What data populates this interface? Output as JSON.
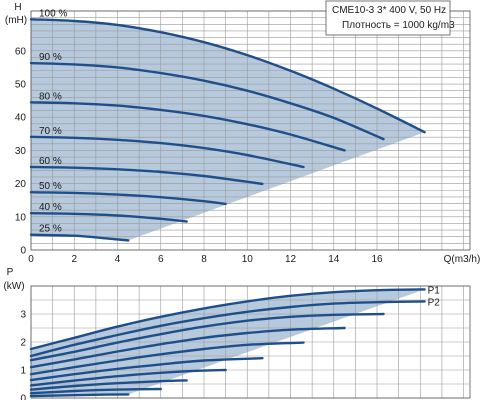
{
  "info": {
    "line1": "CME10-3   3* 400 V, 50 Hz",
    "line2": "Плотность = 1000 kg/m3"
  },
  "chart_data": [
    {
      "type": "line",
      "panel": "head",
      "ylabel_top": "H",
      "ylabel_unit": "(mH)",
      "xlabel": "Q(m3/h)",
      "xlim": [
        0,
        20.3
      ],
      "ylim": [
        0,
        72
      ],
      "x_ticks": [
        0,
        2,
        4,
        6,
        8,
        10,
        12,
        14,
        16
      ],
      "y_ticks": [
        0,
        10,
        20,
        30,
        40,
        50,
        60
      ],
      "grid": true,
      "series": [
        {
          "name": "100 %",
          "points": [
            [
              0,
              69.5
            ],
            [
              2,
              69.0
            ],
            [
              4,
              67.8
            ],
            [
              6,
              65.6
            ],
            [
              8,
              62.6
            ],
            [
              10,
              58.7
            ],
            [
              12,
              54.0
            ],
            [
              14,
              48.6
            ],
            [
              16,
              42.6
            ],
            [
              18.2,
              35.5
            ]
          ]
        },
        {
          "name": "90 %",
          "points": [
            [
              0,
              56.3
            ],
            [
              2,
              55.9
            ],
            [
              4,
              55.0
            ],
            [
              6,
              53.3
            ],
            [
              8,
              51.0
            ],
            [
              10,
              48.0
            ],
            [
              12,
              44.2
            ],
            [
              14,
              39.8
            ],
            [
              16.3,
              33.4
            ]
          ]
        },
        {
          "name": "80 %",
          "points": [
            [
              0,
              44.5
            ],
            [
              2,
              44.2
            ],
            [
              4,
              43.5
            ],
            [
              6,
              42.2
            ],
            [
              8,
              40.4
            ],
            [
              10,
              37.9
            ],
            [
              12,
              34.8
            ],
            [
              14.5,
              30.0
            ]
          ]
        },
        {
          "name": "70 %",
          "points": [
            [
              0,
              34.1
            ],
            [
              2,
              33.8
            ],
            [
              4,
              33.2
            ],
            [
              6,
              32.2
            ],
            [
              8,
              30.7
            ],
            [
              10,
              28.6
            ],
            [
              12.6,
              25.0
            ]
          ]
        },
        {
          "name": "60 %",
          "points": [
            [
              0,
              25.0
            ],
            [
              2,
              24.8
            ],
            [
              4,
              24.3
            ],
            [
              6,
              23.5
            ],
            [
              8,
              22.3
            ],
            [
              10.7,
              19.9
            ]
          ]
        },
        {
          "name": "50 %",
          "points": [
            [
              0,
              17.4
            ],
            [
              2,
              17.2
            ],
            [
              4,
              16.7
            ],
            [
              6,
              15.9
            ],
            [
              8,
              14.7
            ],
            [
              9.0,
              13.9
            ]
          ]
        },
        {
          "name": "40 %",
          "points": [
            [
              0,
              11.1
            ],
            [
              2,
              10.9
            ],
            [
              4,
              10.4
            ],
            [
              6,
              9.4
            ],
            [
              7.2,
              8.6
            ]
          ]
        },
        {
          "name": "25 %",
          "points": [
            [
              0,
              4.6
            ],
            [
              2,
              4.3
            ],
            [
              3.5,
              3.5
            ],
            [
              4.5,
              2.9
            ]
          ]
        }
      ]
    },
    {
      "type": "line",
      "panel": "power",
      "ylabel_top": "P",
      "ylabel_unit": "(kW)",
      "xlim": [
        0,
        20.3
      ],
      "ylim": [
        0,
        4.0
      ],
      "y_ticks": [
        0,
        1,
        2,
        3
      ],
      "grid": true,
      "series": [
        {
          "name": "P1",
          "points": [
            [
              0,
              1.75
            ],
            [
              2,
              2.15
            ],
            [
              4,
              2.55
            ],
            [
              6,
              2.9
            ],
            [
              8,
              3.2
            ],
            [
              10,
              3.45
            ],
            [
              12,
              3.65
            ],
            [
              14,
              3.78
            ],
            [
              16,
              3.85
            ],
            [
              18.2,
              3.88
            ]
          ]
        },
        {
          "name": "P2",
          "points": [
            [
              0,
              1.5
            ],
            [
              2,
              1.9
            ],
            [
              4,
              2.25
            ],
            [
              6,
              2.58
            ],
            [
              8,
              2.85
            ],
            [
              10,
              3.08
            ],
            [
              12,
              3.25
            ],
            [
              14,
              3.37
            ],
            [
              16,
              3.42
            ],
            [
              18.2,
              3.45
            ]
          ]
        },
        {
          "name": "",
          "points": [
            [
              0,
              1.35
            ],
            [
              2,
              1.65
            ],
            [
              4,
              1.98
            ],
            [
              6,
              2.28
            ],
            [
              8,
              2.55
            ],
            [
              10,
              2.76
            ],
            [
              12,
              2.9
            ],
            [
              14,
              2.97
            ],
            [
              16.3,
              3.0
            ]
          ]
        },
        {
          "name": "",
          "points": [
            [
              0,
              1.1
            ],
            [
              2,
              1.38
            ],
            [
              4,
              1.66
            ],
            [
              6,
              1.92
            ],
            [
              8,
              2.15
            ],
            [
              10,
              2.32
            ],
            [
              12,
              2.44
            ],
            [
              14.5,
              2.5
            ]
          ]
        },
        {
          "name": "",
          "points": [
            [
              0,
              0.85
            ],
            [
              2,
              1.1
            ],
            [
              4,
              1.34
            ],
            [
              6,
              1.56
            ],
            [
              8,
              1.75
            ],
            [
              10,
              1.9
            ],
            [
              12.6,
              1.98
            ]
          ]
        },
        {
          "name": "",
          "points": [
            [
              0,
              0.64
            ],
            [
              2,
              0.85
            ],
            [
              4,
              1.04
            ],
            [
              6,
              1.2
            ],
            [
              8,
              1.34
            ],
            [
              10.7,
              1.42
            ]
          ]
        },
        {
          "name": "",
          "points": [
            [
              0,
              0.45
            ],
            [
              2,
              0.62
            ],
            [
              4,
              0.78
            ],
            [
              6,
              0.9
            ],
            [
              8,
              0.98
            ],
            [
              9.0,
              1.0
            ]
          ]
        },
        {
          "name": "",
          "points": [
            [
              0,
              0.3
            ],
            [
              2,
              0.43
            ],
            [
              4,
              0.53
            ],
            [
              6,
              0.6
            ],
            [
              7.2,
              0.63
            ]
          ]
        },
        {
          "name": "",
          "points": [
            [
              0,
              0.17
            ],
            [
              2,
              0.25
            ],
            [
              4,
              0.3
            ],
            [
              6,
              0.32
            ]
          ]
        },
        {
          "name": "",
          "points": [
            [
              0,
              0.07
            ],
            [
              2,
              0.1
            ],
            [
              3.5,
              0.12
            ],
            [
              4.5,
              0.13
            ]
          ]
        }
      ]
    }
  ]
}
